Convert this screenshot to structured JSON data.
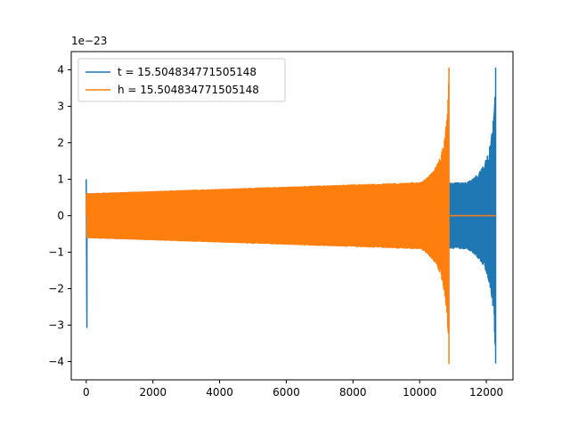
{
  "chart_data": {
    "type": "line",
    "title": "",
    "xlabel": "",
    "ylabel": "",
    "y_offset_label": "1e−23",
    "xlim": [
      -450,
      12800
    ],
    "ylim": [
      -4.5,
      4.5
    ],
    "x_ticks": [
      0,
      2000,
      4000,
      6000,
      8000,
      10000,
      12000
    ],
    "x_tick_labels": [
      "0",
      "2000",
      "4000",
      "6000",
      "8000",
      "10000",
      "12000"
    ],
    "y_ticks": [
      -4,
      -3,
      -2,
      -1,
      0,
      1,
      2,
      3,
      4
    ],
    "y_tick_labels": [
      "−4",
      "−3",
      "−2",
      "−1",
      "0",
      "1",
      "2",
      "3",
      "4"
    ],
    "grid": false,
    "legend_position": "top-left",
    "series": [
      {
        "name": "t = 15.504834771505148",
        "color": "#1f77b4",
        "pattern": "inspiral_chirp",
        "x_start": 0,
        "x_end": 12280,
        "baseline_amplitude": 0.6,
        "start_spike_values": [
          1.0,
          -3.3
        ],
        "merger_peak_max": 4.05,
        "merger_peak_min": -4.05,
        "post_merger_value": 0
      },
      {
        "name": "h = 15.504834771505148",
        "color": "#ff7f0e",
        "pattern": "inspiral_chirp",
        "x_start": 0,
        "x_end": 10880,
        "baseline_amplitude": 0.6,
        "merger_peak_max": 4.05,
        "merger_peak_min": -4.05,
        "post_merger_value": 0,
        "post_merger_x_end": 12280
      }
    ]
  }
}
